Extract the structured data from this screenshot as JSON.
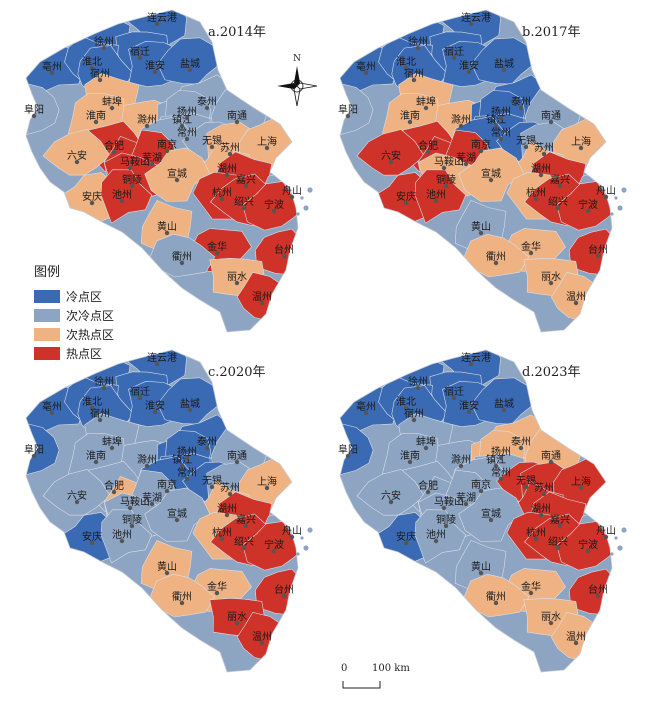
{
  "colors": {
    "cold": "#3a6ab4",
    "subcold": "#8da4c2",
    "subhot": "#efb383",
    "hot": "#ce3228",
    "dot": "#555555",
    "boundary": "#d9dee8"
  },
  "legend": {
    "title": "图例",
    "items": [
      {
        "key": "cold",
        "label": "冷点区"
      },
      {
        "key": "subcold",
        "label": "次冷点区"
      },
      {
        "key": "subhot",
        "label": "次热点区"
      },
      {
        "key": "hot",
        "label": "热点区"
      }
    ]
  },
  "compass": {
    "north_label": "N"
  },
  "scale_bar": {
    "start_label": "0",
    "end_label": "100 km"
  },
  "city_names": [
    "连云港",
    "徐州",
    "宿迁",
    "亳州",
    "淮北",
    "宿州",
    "淮安",
    "盐城",
    "蚌埠",
    "阜阳",
    "淮南",
    "泰州",
    "滁州",
    "镇江",
    "南通",
    "扬州",
    "合肥",
    "常州",
    "南京",
    "无锡",
    "苏州",
    "上海",
    "六安",
    "马鞍山",
    "芜湖",
    "湖州",
    "嘉兴",
    "舟山",
    "铜陵",
    "宣城",
    "杭州",
    "绍兴",
    "安庆",
    "池州",
    "黄山",
    "宁波",
    "金华",
    "衢州",
    "台州",
    "丽水",
    "温州"
  ],
  "panels": [
    {
      "title": "a.2014年",
      "classes": {
        "连云港": "cold",
        "徐州": "cold",
        "宿迁": "cold",
        "亳州": "cold",
        "淮北": "cold",
        "宿州": "cold",
        "淮安": "cold",
        "盐城": "cold",
        "蚌埠": "subhot",
        "阜阳": "subcold",
        "淮南": "subhot",
        "泰州": "subcold",
        "滁州": "subhot",
        "镇江": "subcold",
        "南通": "subcold",
        "扬州": "subcold",
        "合肥": "hot",
        "常州": "subcold",
        "南京": "subcold",
        "无锡": "subcold",
        "苏州": "subhot",
        "上海": "subhot",
        "六安": "subhot",
        "马鞍山": "hot",
        "芜湖": "hot",
        "湖州": "subhot",
        "嘉兴": "hot",
        "舟山": "subcold",
        "铜陵": "hot",
        "宣城": "subhot",
        "杭州": "hot",
        "绍兴": "hot",
        "安庆": "subhot",
        "池州": "hot",
        "黄山": "subhot",
        "宁波": "hot",
        "金华": "hot",
        "衢州": "subcold",
        "台州": "hot",
        "丽水": "subhot",
        "温州": "hot"
      }
    },
    {
      "title": "b.2017年",
      "classes": {
        "连云港": "cold",
        "徐州": "cold",
        "宿迁": "cold",
        "亳州": "cold",
        "淮北": "cold",
        "宿州": "cold",
        "淮安": "cold",
        "盐城": "cold",
        "蚌埠": "subhot",
        "阜阳": "subcold",
        "淮南": "subhot",
        "泰州": "cold",
        "滁州": "subhot",
        "镇江": "cold",
        "南通": "subcold",
        "扬州": "cold",
        "合肥": "hot",
        "常州": "cold",
        "南京": "cold",
        "无锡": "cold",
        "苏州": "subcold",
        "上海": "subhot",
        "六安": "hot",
        "马鞍山": "hot",
        "芜湖": "hot",
        "湖州": "subhot",
        "嘉兴": "hot",
        "舟山": "subcold",
        "铜陵": "subhot",
        "宣城": "subhot",
        "杭州": "subhot",
        "绍兴": "hot",
        "安庆": "hot",
        "池州": "hot",
        "黄山": "subcold",
        "宁波": "hot",
        "金华": "subhot",
        "衢州": "subhot",
        "台州": "hot",
        "丽水": "subhot",
        "温州": "subhot"
      }
    },
    {
      "title": "c.2020年",
      "classes": {
        "连云港": "cold",
        "徐州": "cold",
        "宿迁": "cold",
        "亳州": "cold",
        "淮北": "cold",
        "宿州": "cold",
        "淮安": "cold",
        "盐城": "cold",
        "蚌埠": "subcold",
        "阜阳": "cold",
        "淮南": "subcold",
        "泰州": "cold",
        "滁州": "subcold",
        "镇江": "cold",
        "南通": "subcold",
        "扬州": "cold",
        "合肥": "subcold",
        "常州": "cold",
        "南京": "cold",
        "无锡": "cold",
        "苏州": "subcold",
        "上海": "subhot",
        "六安": "subcold",
        "马鞍山": "subhot",
        "芜湖": "subcold",
        "湖州": "subhot",
        "嘉兴": "hot",
        "舟山": "subcold",
        "铜陵": "subcold",
        "宣城": "subcold",
        "杭州": "subhot",
        "绍兴": "hot",
        "安庆": "cold",
        "池州": "subcold",
        "黄山": "subhot",
        "宁波": "hot",
        "金华": "subhot",
        "衢州": "subhot",
        "台州": "hot",
        "丽水": "hot",
        "温州": "hot"
      }
    },
    {
      "title": "d.2023年",
      "classes": {
        "连云港": "cold",
        "徐州": "cold",
        "宿迁": "cold",
        "亳州": "cold",
        "淮北": "cold",
        "宿州": "cold",
        "淮安": "cold",
        "盐城": "cold",
        "蚌埠": "subcold",
        "阜阳": "cold",
        "淮南": "subcold",
        "泰州": "subhot",
        "滁州": "subcold",
        "镇江": "subhot",
        "南通": "subhot",
        "扬州": "subhot",
        "合肥": "subcold",
        "常州": "subcold",
        "南京": "subcold",
        "无锡": "hot",
        "苏州": "hot",
        "上海": "hot",
        "六安": "subcold",
        "马鞍山": "subcold",
        "芜湖": "subcold",
        "湖州": "hot",
        "嘉兴": "hot",
        "舟山": "subcold",
        "铜陵": "subcold",
        "宣城": "subcold",
        "杭州": "hot",
        "绍兴": "hot",
        "安庆": "cold",
        "池州": "subcold",
        "黄山": "subcold",
        "宁波": "hot",
        "金华": "subhot",
        "衢州": "subhot",
        "台州": "hot",
        "丽水": "subhot",
        "温州": "subhot"
      }
    }
  ]
}
